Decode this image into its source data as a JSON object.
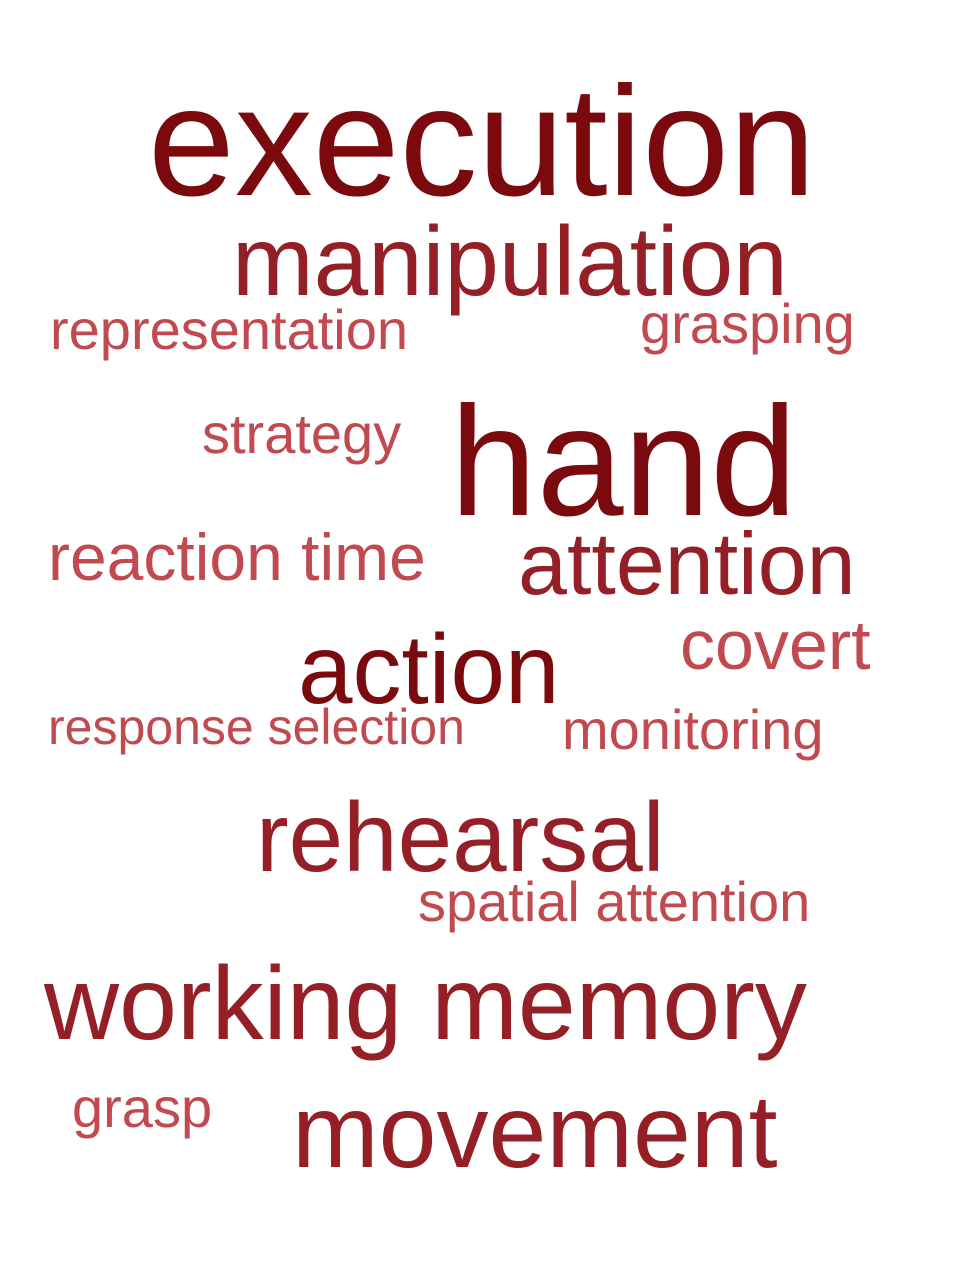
{
  "colors": {
    "darkest": "#7a0a0d",
    "medium": "#951f26",
    "light": "#c04a50",
    "background": "#ffffff"
  },
  "words": {
    "execution": "execution",
    "manipulation": "manipulation",
    "representation": "representation",
    "grasping": "grasping",
    "strategy": "strategy",
    "hand": "hand",
    "reaction_time": "reaction time",
    "attention": "attention",
    "action": "action",
    "covert": "covert",
    "response_selection": "response selection",
    "monitoring": "monitoring",
    "rehearsal": "rehearsal",
    "spatial_attention": "spatial attention",
    "working_memory": "working memory",
    "grasp": "grasp",
    "movement": "movement"
  }
}
